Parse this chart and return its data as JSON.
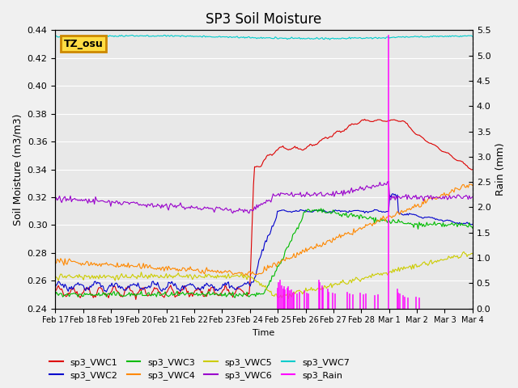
{
  "title": "SP3 Soil Moisture",
  "ylabel_left": "Soil Moisture (m3/m3)",
  "ylabel_right": "Rain (mm)",
  "xlabel": "Time",
  "ylim_left": [
    0.24,
    0.44
  ],
  "ylim_right": [
    0.0,
    5.5
  ],
  "background_color": "#e8e8e8",
  "label_box_text": "TZ_osu",
  "label_box_color": "#ffdd44",
  "label_box_edge": "#cc8800",
  "series_colors": {
    "sp3_VWC1": "#dd0000",
    "sp3_VWC2": "#0000cc",
    "sp3_VWC3": "#00bb00",
    "sp3_VWC4": "#ff8800",
    "sp3_VWC5": "#cccc00",
    "sp3_VWC6": "#9900cc",
    "sp3_VWC7": "#00cccc",
    "sp3_Rain": "#ff00ff"
  },
  "x_ticks": [
    "Feb 17",
    "Feb 18",
    "Feb 19",
    "Feb 20",
    "Feb 21",
    "Feb 22",
    "Feb 23",
    "Feb 24",
    "Feb 25",
    "Feb 26",
    "Feb 27",
    "Feb 28",
    "Mar 1",
    "Mar 2",
    "Mar 3",
    "Mar 4"
  ],
  "yticks_left": [
    0.24,
    0.26,
    0.28,
    0.3,
    0.32,
    0.34,
    0.36,
    0.38,
    0.4,
    0.42,
    0.44
  ],
  "yticks_right": [
    0.0,
    0.5,
    1.0,
    1.5,
    2.0,
    2.5,
    3.0,
    3.5,
    4.0,
    4.5,
    5.0,
    5.5
  ]
}
